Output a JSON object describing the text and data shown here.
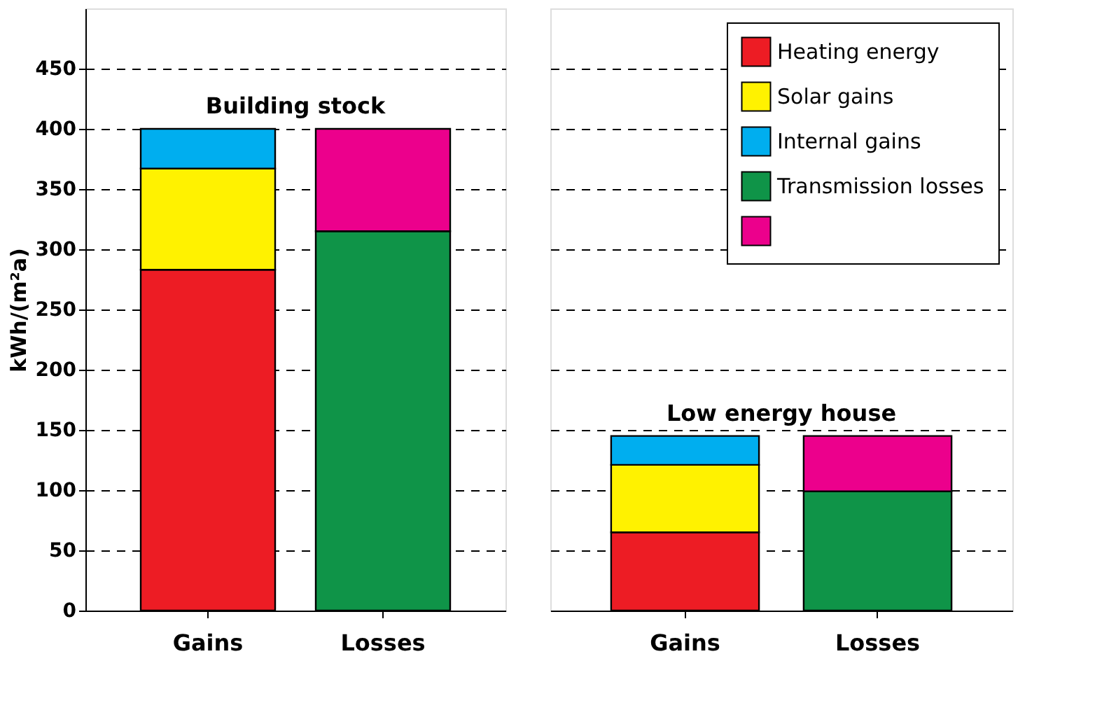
{
  "chart_data": [
    {
      "type": "bar",
      "stacked": true,
      "categories": [
        "Gains",
        "Losses"
      ],
      "ylabel": "kWh/(m²a)",
      "ylim": [
        0,
        500
      ],
      "yticks": [
        0,
        50,
        100,
        150,
        200,
        250,
        300,
        350,
        400,
        450
      ],
      "grid": "y",
      "legend": false,
      "annotations": [
        "Building stock"
      ],
      "series": [
        {
          "color": "#ed1c24",
          "values": [
            283,
            null
          ]
        },
        {
          "color": "#fff200",
          "values": [
            84,
            null
          ]
        },
        {
          "color": "#00aeef",
          "values": [
            33,
            null
          ]
        },
        {
          "color": "#0f9448",
          "values": [
            null,
            315
          ]
        },
        {
          "color": "#ec008c",
          "values": [
            null,
            85
          ]
        }
      ]
    },
    {
      "type": "bar",
      "stacked": true,
      "categories": [
        "Gains",
        "Losses"
      ],
      "ylim": [
        0,
        500
      ],
      "yticks": [
        0,
        50,
        100,
        150,
        200,
        250,
        300,
        350,
        400,
        450
      ],
      "grid": "y",
      "legend": "top right",
      "tick_labels": "x",
      "annotations": [
        "Low energy house"
      ],
      "series": [
        {
          "name": "Heating energy",
          "color": "#ed1c24",
          "values": [
            65,
            null
          ]
        },
        {
          "name": "Solar gains",
          "color": "#fff200",
          "values": [
            56,
            null
          ]
        },
        {
          "name": "Internal gains",
          "color": "#00aeef",
          "values": [
            24,
            null
          ]
        },
        {
          "name": "Transmission losses",
          "color": "#0f9448",
          "values": [
            null,
            99
          ]
        },
        {
          "name": null,
          "color": "#ec008c",
          "values": [
            null,
            46
          ]
        }
      ]
    }
  ]
}
